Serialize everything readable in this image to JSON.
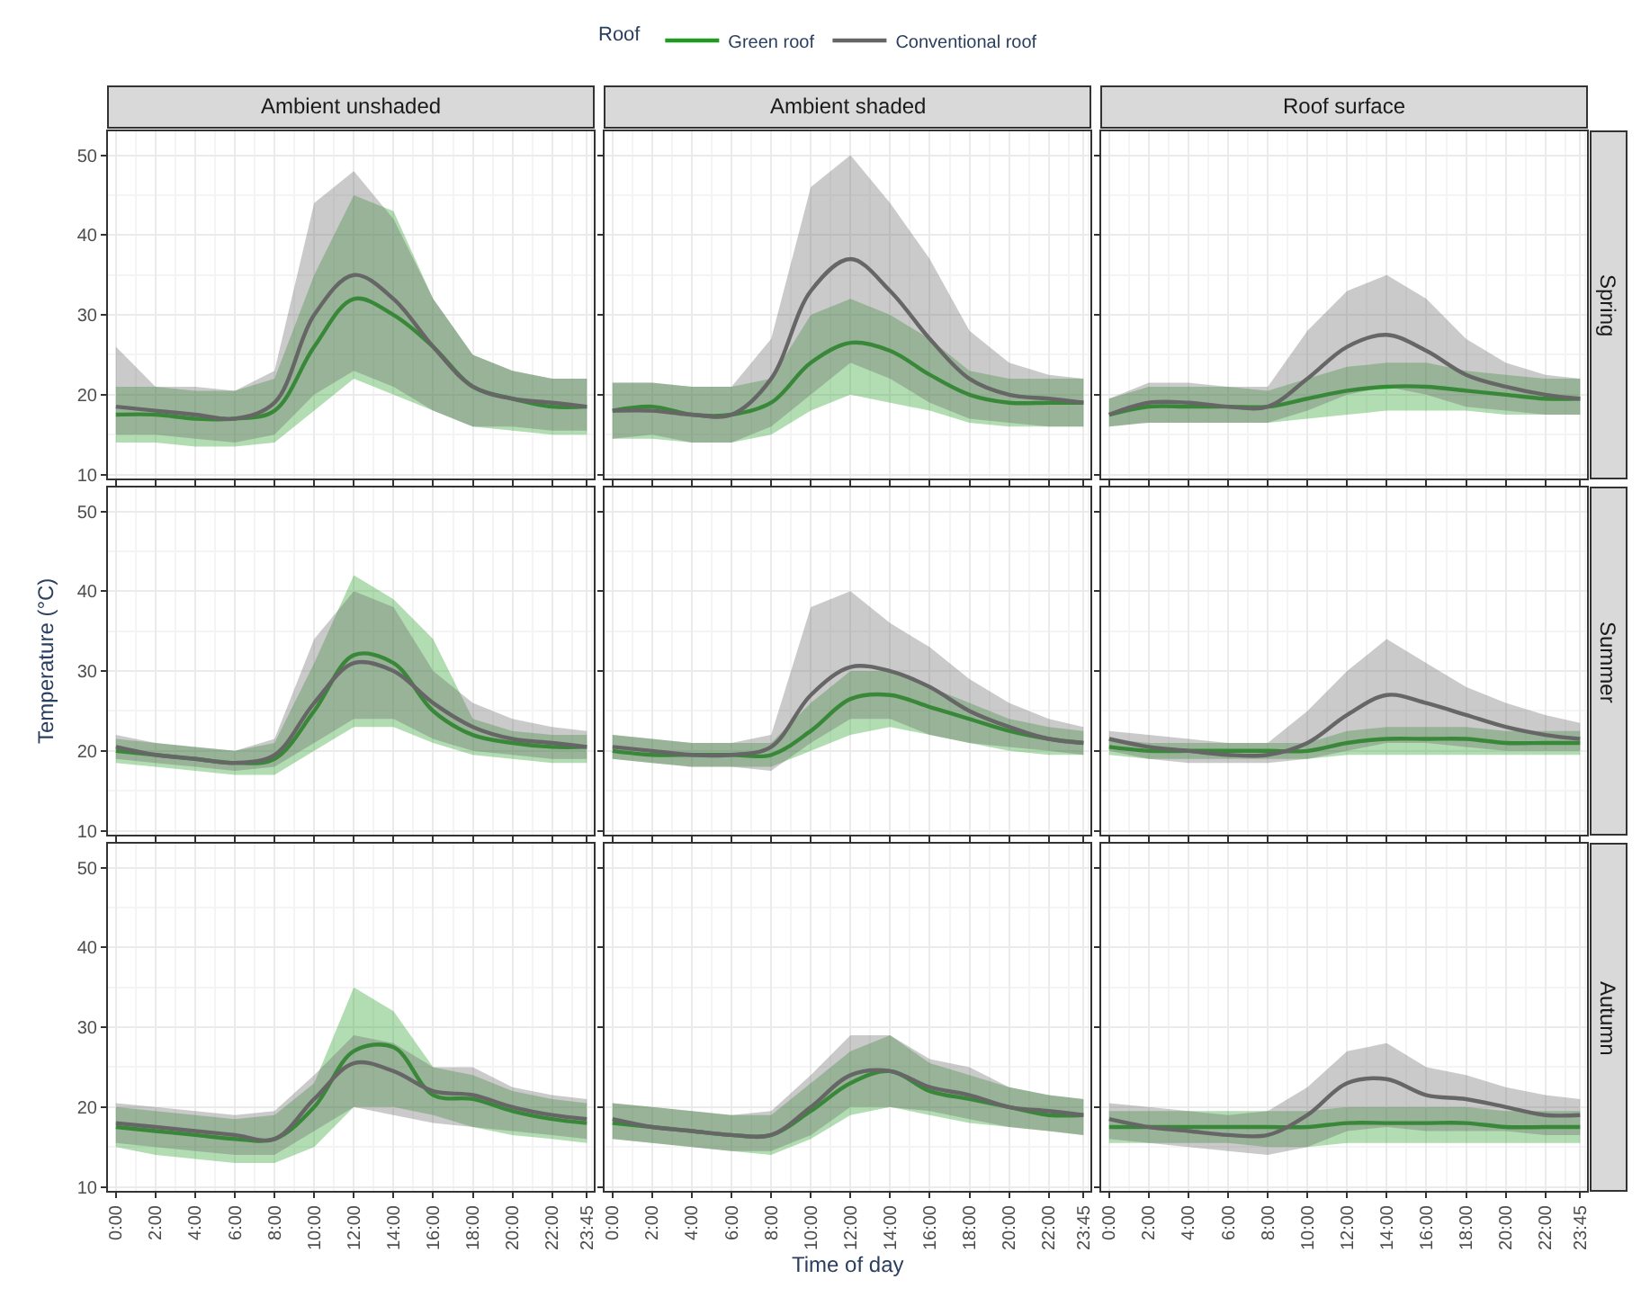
{
  "chart_data": [
    {
      "type": "line",
      "title": "Ambient unshaded",
      "legend_title": "Roof",
      "legend": "top",
      "tick_labels": "y",
      "grid": true,
      "ylim": [
        9.5,
        53
      ],
      "yticks": [
        10,
        20,
        30,
        40,
        50
      ],
      "xlim": [
        -0.4,
        24.1
      ],
      "xticks": [
        {
          "value": 0,
          "label": null
        },
        {
          "value": 2,
          "label": null
        },
        {
          "value": 4,
          "label": null
        },
        {
          "value": 6,
          "label": null
        },
        {
          "value": 8,
          "label": null
        },
        {
          "value": 10,
          "label": null
        },
        {
          "value": 12,
          "label": null
        },
        {
          "value": 14,
          "label": null
        },
        {
          "value": 16,
          "label": null
        },
        {
          "value": 18,
          "label": null
        },
        {
          "value": 20,
          "label": null
        },
        {
          "value": 22,
          "label": null
        },
        {
          "value": 23.75,
          "label": null
        }
      ],
      "x": [
        0,
        2,
        4,
        6,
        8,
        10,
        12,
        14,
        16,
        18,
        20,
        22,
        23.75
      ],
      "series": [
        {
          "name": "Green roof",
          "color": "#219a21",
          "values": [
            17.5,
            17.5,
            17,
            17,
            18,
            26,
            32,
            30,
            26,
            21,
            19.5,
            18.5,
            18.5
          ],
          "lower": [
            14,
            14,
            13.5,
            13.5,
            14,
            18,
            22,
            20,
            18,
            16,
            15.5,
            15,
            15
          ],
          "upper": [
            21,
            21,
            20.5,
            20.5,
            22,
            35,
            45,
            43,
            32,
            25,
            23,
            22,
            22
          ]
        },
        {
          "name": "Conventional roof",
          "color": "#666666",
          "values": [
            18.5,
            18,
            17.5,
            17,
            19,
            30,
            35,
            32,
            26,
            21,
            19.5,
            19,
            18.5
          ],
          "lower": [
            15,
            15,
            14.5,
            14,
            15,
            20,
            23,
            21,
            18,
            16,
            16,
            15.5,
            15.5
          ],
          "upper": [
            26,
            21,
            21,
            20.5,
            23,
            44,
            48,
            42,
            32,
            25,
            23,
            22,
            22
          ]
        }
      ]
    },
    {
      "type": "line",
      "title": "Ambient shaded",
      "tick_labels": false,
      "grid": true,
      "ylim": [
        9.5,
        53
      ],
      "yticks": [
        10,
        20,
        30,
        40,
        50
      ],
      "xlim": [
        -0.4,
        24.1
      ],
      "xticks": [
        {
          "value": 0,
          "label": null
        },
        {
          "value": 2,
          "label": null
        },
        {
          "value": 4,
          "label": null
        },
        {
          "value": 6,
          "label": null
        },
        {
          "value": 8,
          "label": null
        },
        {
          "value": 10,
          "label": null
        },
        {
          "value": 12,
          "label": null
        },
        {
          "value": 14,
          "label": null
        },
        {
          "value": 16,
          "label": null
        },
        {
          "value": 18,
          "label": null
        },
        {
          "value": 20,
          "label": null
        },
        {
          "value": 22,
          "label": null
        },
        {
          "value": 23.75,
          "label": null
        }
      ],
      "x": [
        0,
        2,
        4,
        6,
        8,
        10,
        12,
        14,
        16,
        18,
        20,
        22,
        23.75
      ],
      "series": [
        {
          "color": "#219a21",
          "values": [
            18,
            18.5,
            17.5,
            17.5,
            19,
            24,
            26.5,
            25.5,
            22.5,
            20,
            19,
            19,
            19
          ],
          "lower": [
            14.5,
            14.5,
            14,
            14,
            15,
            18,
            20,
            19,
            18,
            16.5,
            16,
            16,
            16
          ],
          "upper": [
            21.5,
            21.5,
            21,
            21,
            22,
            30,
            32,
            30,
            27,
            23,
            22,
            22,
            22
          ]
        },
        {
          "color": "#666666",
          "values": [
            18,
            18,
            17.5,
            17.5,
            22,
            33,
            37,
            33,
            27,
            22,
            20,
            19.5,
            19
          ],
          "lower": [
            14.5,
            15,
            14,
            14,
            16,
            20,
            24,
            22,
            19,
            17,
            16.5,
            16,
            16
          ],
          "upper": [
            21.5,
            21.5,
            21,
            21,
            27,
            46,
            50,
            44,
            37,
            28,
            24,
            22.5,
            22
          ]
        }
      ]
    },
    {
      "type": "line",
      "title": "Roof surface",
      "annotations": [
        "Spring"
      ],
      "tick_labels": false,
      "grid": true,
      "ylim": [
        9.5,
        53
      ],
      "yticks": [
        10,
        20,
        30,
        40,
        50
      ],
      "xlim": [
        -0.4,
        24.1
      ],
      "xticks": [
        {
          "value": 0,
          "label": null
        },
        {
          "value": 2,
          "label": null
        },
        {
          "value": 4,
          "label": null
        },
        {
          "value": 6,
          "label": null
        },
        {
          "value": 8,
          "label": null
        },
        {
          "value": 10,
          "label": null
        },
        {
          "value": 12,
          "label": null
        },
        {
          "value": 14,
          "label": null
        },
        {
          "value": 16,
          "label": null
        },
        {
          "value": 18,
          "label": null
        },
        {
          "value": 20,
          "label": null
        },
        {
          "value": 22,
          "label": null
        },
        {
          "value": 23.75,
          "label": null
        }
      ],
      "x": [
        0,
        2,
        4,
        6,
        8,
        10,
        12,
        14,
        16,
        18,
        20,
        22,
        23.75
      ],
      "series": [
        {
          "color": "#219a21",
          "values": [
            17.5,
            18.5,
            18.5,
            18.5,
            18.5,
            19.5,
            20.5,
            21,
            21,
            20.5,
            20,
            19.5,
            19.5
          ],
          "lower": [
            16,
            16.5,
            16.5,
            16.5,
            16.5,
            17,
            17.5,
            18,
            18,
            18,
            17.5,
            17.5,
            17.5
          ],
          "upper": [
            19.5,
            21,
            21,
            21,
            20.5,
            22,
            23.5,
            24,
            24,
            23,
            22.5,
            22,
            22
          ]
        },
        {
          "color": "#666666",
          "values": [
            17.5,
            19,
            19,
            18.5,
            18.5,
            22,
            26,
            27.5,
            25.5,
            22.5,
            21,
            20,
            19.5
          ],
          "lower": [
            16,
            16.5,
            16.5,
            16.5,
            16.5,
            18,
            20,
            21,
            20,
            18.5,
            18,
            17.5,
            17.5
          ],
          "upper": [
            19.5,
            21.5,
            21.5,
            21,
            21,
            28,
            33,
            35,
            32,
            27,
            24,
            22.5,
            22
          ]
        }
      ]
    },
    {
      "type": "line",
      "ylabel": "Temperature (°C)",
      "tick_labels": "y",
      "grid": true,
      "ylim": [
        9.5,
        53
      ],
      "yticks": [
        10,
        20,
        30,
        40,
        50
      ],
      "xlim": [
        -0.4,
        24.1
      ],
      "xticks": [
        {
          "value": 0,
          "label": null
        },
        {
          "value": 2,
          "label": null
        },
        {
          "value": 4,
          "label": null
        },
        {
          "value": 6,
          "label": null
        },
        {
          "value": 8,
          "label": null
        },
        {
          "value": 10,
          "label": null
        },
        {
          "value": 12,
          "label": null
        },
        {
          "value": 14,
          "label": null
        },
        {
          "value": 16,
          "label": null
        },
        {
          "value": 18,
          "label": null
        },
        {
          "value": 20,
          "label": null
        },
        {
          "value": 22,
          "label": null
        },
        {
          "value": 23.75,
          "label": null
        }
      ],
      "x": [
        0,
        2,
        4,
        6,
        8,
        10,
        12,
        14,
        16,
        18,
        20,
        22,
        23.75
      ],
      "series": [
        {
          "color": "#219a21",
          "values": [
            20,
            19.5,
            19,
            18.5,
            19,
            25,
            32,
            31,
            25,
            22,
            21,
            20.5,
            20.5
          ],
          "lower": [
            18.5,
            18,
            17.5,
            17,
            17,
            20,
            23,
            23,
            21,
            19.5,
            19,
            18.5,
            18.5
          ],
          "upper": [
            21.5,
            21,
            20.5,
            20,
            21,
            31,
            42,
            39,
            34,
            24,
            22.5,
            22,
            22
          ]
        },
        {
          "color": "#666666",
          "values": [
            20.5,
            19.5,
            19,
            18.5,
            19.5,
            26,
            31,
            30,
            26,
            23,
            21.5,
            21,
            20.5
          ],
          "lower": [
            19,
            18.5,
            18,
            17.5,
            18,
            21,
            24,
            24,
            21.5,
            20,
            19.5,
            19,
            19
          ],
          "upper": [
            22,
            21,
            20.5,
            20,
            21.5,
            34,
            40,
            38,
            30,
            26,
            24,
            23,
            22.5
          ]
        }
      ]
    },
    {
      "type": "line",
      "tick_labels": false,
      "grid": true,
      "ylim": [
        9.5,
        53
      ],
      "yticks": [
        10,
        20,
        30,
        40,
        50
      ],
      "xlim": [
        -0.4,
        24.1
      ],
      "xticks": [
        {
          "value": 0,
          "label": null
        },
        {
          "value": 2,
          "label": null
        },
        {
          "value": 4,
          "label": null
        },
        {
          "value": 6,
          "label": null
        },
        {
          "value": 8,
          "label": null
        },
        {
          "value": 10,
          "label": null
        },
        {
          "value": 12,
          "label": null
        },
        {
          "value": 14,
          "label": null
        },
        {
          "value": 16,
          "label": null
        },
        {
          "value": 18,
          "label": null
        },
        {
          "value": 20,
          "label": null
        },
        {
          "value": 22,
          "label": null
        },
        {
          "value": 23.75,
          "label": null
        }
      ],
      "x": [
        0,
        2,
        4,
        6,
        8,
        10,
        12,
        14,
        16,
        18,
        20,
        22,
        23.75
      ],
      "series": [
        {
          "color": "#219a21",
          "values": [
            20,
            19.5,
            19.5,
            19.5,
            19.5,
            22.5,
            26.5,
            27,
            25.5,
            24,
            22.5,
            21.5,
            21
          ],
          "lower": [
            19,
            18.5,
            18,
            18,
            18,
            20,
            22,
            23,
            22,
            21,
            20,
            19.5,
            19.5
          ],
          "upper": [
            22,
            21.5,
            21,
            21,
            21,
            26,
            30,
            30,
            28,
            26,
            24,
            23,
            22.5
          ]
        },
        {
          "color": "#666666",
          "values": [
            20.5,
            20,
            19.5,
            19.5,
            20.5,
            27,
            30.5,
            30,
            28,
            25,
            23,
            21.5,
            21
          ],
          "lower": [
            19,
            18.5,
            18,
            18,
            17.5,
            21,
            24,
            24,
            22,
            21,
            20.5,
            20,
            19.5
          ],
          "upper": [
            22,
            21.5,
            21,
            21,
            22,
            38,
            40,
            36,
            33,
            29,
            26,
            24,
            23
          ]
        }
      ]
    },
    {
      "type": "line",
      "annotations": [
        "Summer"
      ],
      "tick_labels": false,
      "grid": true,
      "ylim": [
        9.5,
        53
      ],
      "yticks": [
        10,
        20,
        30,
        40,
        50
      ],
      "xlim": [
        -0.4,
        24.1
      ],
      "xticks": [
        {
          "value": 0,
          "label": null
        },
        {
          "value": 2,
          "label": null
        },
        {
          "value": 4,
          "label": null
        },
        {
          "value": 6,
          "label": null
        },
        {
          "value": 8,
          "label": null
        },
        {
          "value": 10,
          "label": null
        },
        {
          "value": 12,
          "label": null
        },
        {
          "value": 14,
          "label": null
        },
        {
          "value": 16,
          "label": null
        },
        {
          "value": 18,
          "label": null
        },
        {
          "value": 20,
          "label": null
        },
        {
          "value": 22,
          "label": null
        },
        {
          "value": 23.75,
          "label": null
        }
      ],
      "x": [
        0,
        2,
        4,
        6,
        8,
        10,
        12,
        14,
        16,
        18,
        20,
        22,
        23.75
      ],
      "series": [
        {
          "color": "#219a21",
          "values": [
            20.5,
            20,
            20,
            20,
            20,
            20,
            21,
            21.5,
            21.5,
            21.5,
            21,
            21,
            21
          ],
          "lower": [
            19.5,
            19,
            19,
            19,
            19,
            19,
            19.5,
            19.5,
            19.5,
            19.5,
            19.5,
            19.5,
            19.5
          ],
          "upper": [
            21.5,
            21,
            21,
            21,
            21,
            21,
            22.5,
            23,
            23,
            23,
            22.5,
            22.5,
            22.5
          ]
        },
        {
          "color": "#666666",
          "values": [
            21.5,
            20.5,
            20,
            19.5,
            19.5,
            21,
            24.5,
            27,
            26,
            24.5,
            23,
            22,
            21.5
          ],
          "lower": [
            20,
            19,
            18.5,
            18.5,
            18.5,
            19,
            20,
            21,
            21,
            20.5,
            20,
            20,
            20
          ],
          "upper": [
            22.5,
            22,
            21.5,
            21,
            21,
            25,
            30,
            34,
            31,
            28,
            26,
            24.5,
            23.5
          ]
        }
      ]
    },
    {
      "type": "line",
      "grid": true,
      "ylim": [
        9.5,
        53
      ],
      "yticks": [
        10,
        20,
        30,
        40,
        50
      ],
      "xlim": [
        -0.4,
        24.1
      ],
      "xticks": [
        {
          "value": 0,
          "label": "0:00"
        },
        {
          "value": 2,
          "label": "2:00"
        },
        {
          "value": 4,
          "label": "4:00"
        },
        {
          "value": 6,
          "label": "6:00"
        },
        {
          "value": 8,
          "label": "8:00"
        },
        {
          "value": 10,
          "label": "10:00"
        },
        {
          "value": 12,
          "label": "12:00"
        },
        {
          "value": 14,
          "label": "14:00"
        },
        {
          "value": 16,
          "label": "16:00"
        },
        {
          "value": 18,
          "label": "18:00"
        },
        {
          "value": 20,
          "label": "20:00"
        },
        {
          "value": 22,
          "label": "22:00"
        },
        {
          "value": 23.75,
          "label": "23:45"
        }
      ],
      "x": [
        0,
        2,
        4,
        6,
        8,
        10,
        12,
        14,
        16,
        18,
        20,
        22,
        23.75
      ],
      "series": [
        {
          "color": "#219a21",
          "values": [
            17.5,
            17,
            16.5,
            16,
            16,
            20,
            27,
            27.5,
            21.5,
            21,
            19.5,
            18.5,
            18
          ],
          "lower": [
            15,
            14,
            13.5,
            13,
            13,
            15,
            20,
            20,
            19,
            17.5,
            16.5,
            16,
            15.5
          ],
          "upper": [
            20,
            19.5,
            19,
            18.5,
            19,
            23,
            35,
            32,
            25,
            24,
            22,
            21,
            20.5
          ]
        },
        {
          "color": "#666666",
          "values": [
            18,
            17.5,
            17,
            16.5,
            16,
            21,
            25.5,
            24.5,
            22,
            21.5,
            20,
            19,
            18.5
          ],
          "lower": [
            15.5,
            15,
            14.5,
            14,
            14,
            17,
            20,
            19,
            18,
            17.5,
            17,
            16.5,
            16
          ],
          "upper": [
            20.5,
            20,
            19.5,
            19,
            19.5,
            24,
            29,
            28,
            25,
            25,
            22.5,
            21.5,
            21
          ]
        }
      ]
    },
    {
      "type": "line",
      "xlabel": "Time of day",
      "tick_labels": "x",
      "grid": true,
      "ylim": [
        9.5,
        53
      ],
      "yticks": [
        10,
        20,
        30,
        40,
        50
      ],
      "xlim": [
        -0.4,
        24.1
      ],
      "xticks": [
        {
          "value": 0,
          "label": "0:00"
        },
        {
          "value": 2,
          "label": "2:00"
        },
        {
          "value": 4,
          "label": "4:00"
        },
        {
          "value": 6,
          "label": "6:00"
        },
        {
          "value": 8,
          "label": "8:00"
        },
        {
          "value": 10,
          "label": "10:00"
        },
        {
          "value": 12,
          "label": "12:00"
        },
        {
          "value": 14,
          "label": "14:00"
        },
        {
          "value": 16,
          "label": "16:00"
        },
        {
          "value": 18,
          "label": "18:00"
        },
        {
          "value": 20,
          "label": "20:00"
        },
        {
          "value": 22,
          "label": "22:00"
        },
        {
          "value": 23.75,
          "label": "23:45"
        }
      ],
      "x": [
        0,
        2,
        4,
        6,
        8,
        10,
        12,
        14,
        16,
        18,
        20,
        22,
        23.75
      ],
      "series": [
        {
          "color": "#219a21",
          "values": [
            18,
            17.5,
            17,
            16.5,
            16.5,
            19.5,
            23,
            24.5,
            22,
            21,
            20,
            19,
            19
          ],
          "lower": [
            16,
            15.5,
            15,
            14.5,
            14,
            16,
            19,
            20,
            19,
            18,
            17.5,
            17,
            16.5
          ],
          "upper": [
            20.5,
            20,
            19.5,
            19,
            19,
            23,
            27,
            29,
            25.5,
            24,
            22.5,
            21.5,
            21
          ]
        },
        {
          "color": "#666666",
          "values": [
            18.5,
            17.5,
            17,
            16.5,
            16.5,
            20,
            24,
            24.5,
            22.5,
            21.5,
            20,
            19.5,
            19
          ],
          "lower": [
            16,
            15.5,
            15,
            14.5,
            14.5,
            16.5,
            20,
            20,
            19.5,
            18.5,
            17.5,
            17,
            16.5
          ],
          "upper": [
            20.5,
            20,
            19.5,
            19,
            19.5,
            24,
            29,
            29,
            26,
            25,
            22.5,
            21.5,
            21
          ]
        }
      ]
    },
    {
      "type": "line",
      "annotations": [
        "Autumn"
      ],
      "tick_labels": "x",
      "grid": true,
      "ylim": [
        9.5,
        53
      ],
      "yticks": [
        10,
        20,
        30,
        40,
        50
      ],
      "xlim": [
        -0.4,
        24.1
      ],
      "xticks": [
        {
          "value": 0,
          "label": "0:00"
        },
        {
          "value": 2,
          "label": "2:00"
        },
        {
          "value": 4,
          "label": "4:00"
        },
        {
          "value": 6,
          "label": "6:00"
        },
        {
          "value": 8,
          "label": "8:00"
        },
        {
          "value": 10,
          "label": "10:00"
        },
        {
          "value": 12,
          "label": "12:00"
        },
        {
          "value": 14,
          "label": "14:00"
        },
        {
          "value": 16,
          "label": "16:00"
        },
        {
          "value": 18,
          "label": "18:00"
        },
        {
          "value": 20,
          "label": "20:00"
        },
        {
          "value": 22,
          "label": "22:00"
        },
        {
          "value": 23.75,
          "label": "23:45"
        }
      ],
      "x": [
        0,
        2,
        4,
        6,
        8,
        10,
        12,
        14,
        16,
        18,
        20,
        22,
        23.75
      ],
      "series": [
        {
          "color": "#219a21",
          "values": [
            17.5,
            17.5,
            17.5,
            17.5,
            17.5,
            17.5,
            18,
            18,
            18,
            18,
            17.5,
            17.5,
            17.5
          ],
          "lower": [
            15.5,
            15.5,
            15.5,
            15.5,
            15,
            15,
            15.5,
            15.5,
            15.5,
            15.5,
            15.5,
            15.5,
            15.5
          ],
          "upper": [
            19.5,
            19.5,
            19.5,
            19.5,
            19.5,
            19.5,
            20,
            20,
            20,
            20,
            19.5,
            19.5,
            19.5
          ]
        },
        {
          "color": "#666666",
          "values": [
            18.5,
            17.5,
            17,
            16.5,
            16.5,
            19,
            23,
            23.5,
            21.5,
            21,
            20,
            19,
            19
          ],
          "lower": [
            16,
            15.5,
            15,
            14.5,
            14,
            15,
            17,
            17.5,
            17,
            17,
            17,
            16.5,
            16.5
          ],
          "upper": [
            20.5,
            20,
            19.5,
            19,
            19.5,
            22.5,
            27,
            28,
            25,
            24,
            22.5,
            21.5,
            21
          ]
        }
      ]
    }
  ]
}
